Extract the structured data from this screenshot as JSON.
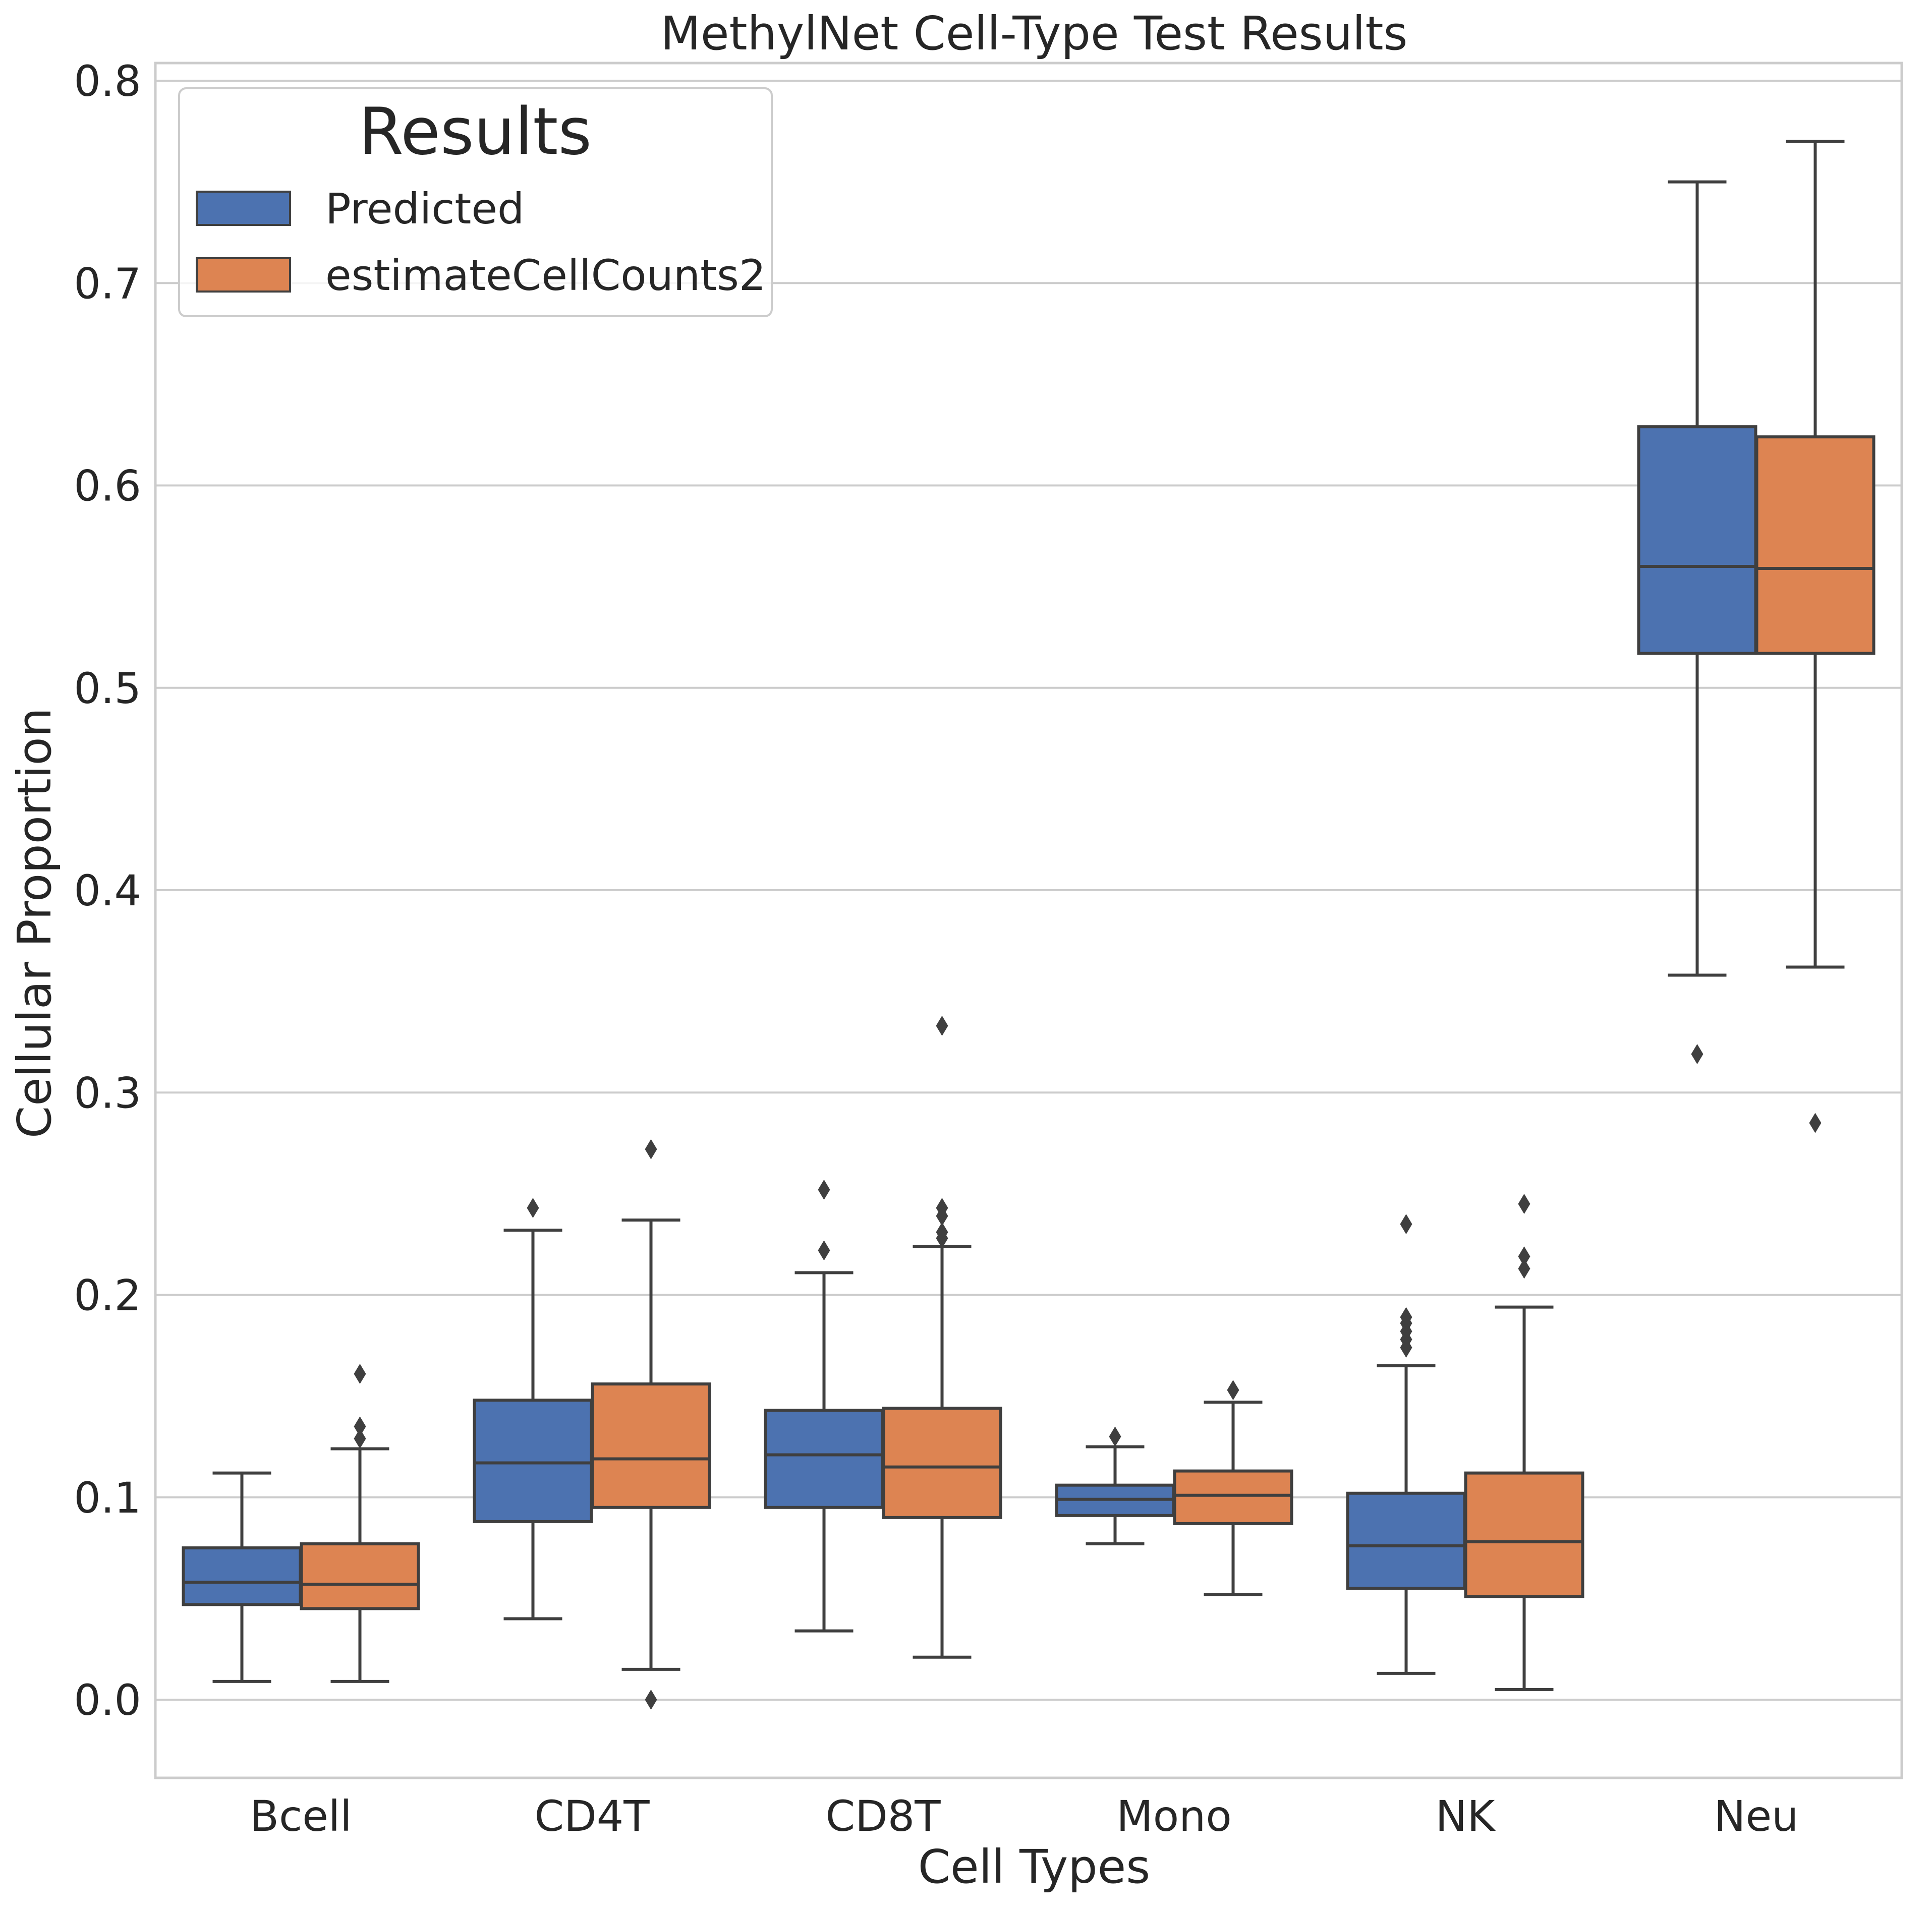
{
  "chart_data": {
    "type": "box",
    "title": "MethylNet Cell-Type Test Results",
    "xlabel": "Cell Types",
    "ylabel": "Cellular Proportion",
    "ylim": [
      -0.04,
      0.81
    ],
    "yticks": [
      "0.0",
      "0.1",
      "0.2",
      "0.3",
      "0.4",
      "0.5",
      "0.6",
      "0.7",
      "0.8"
    ],
    "grid": "horizontal",
    "legend": {
      "title": "Results",
      "position": "top-left"
    },
    "categories": [
      "Bcell",
      "CD4T",
      "CD8T",
      "Mono",
      "NK",
      "Neu"
    ],
    "series": [
      {
        "name": "Predicted",
        "color": "#4c72b0",
        "boxes": [
          {
            "whisker_low": 0.009,
            "q1": 0.047,
            "median": 0.058,
            "q3": 0.075,
            "whisker_high": 0.112,
            "outliers": []
          },
          {
            "whisker_low": 0.04,
            "q1": 0.088,
            "median": 0.117,
            "q3": 0.148,
            "whisker_high": 0.232,
            "outliers": [
              0.243
            ]
          },
          {
            "whisker_low": 0.034,
            "q1": 0.095,
            "median": 0.121,
            "q3": 0.143,
            "whisker_high": 0.211,
            "outliers": [
              0.222,
              0.252
            ]
          },
          {
            "whisker_low": 0.077,
            "q1": 0.091,
            "median": 0.099,
            "q3": 0.106,
            "whisker_high": 0.125,
            "outliers": [
              0.13
            ]
          },
          {
            "whisker_low": 0.013,
            "q1": 0.055,
            "median": 0.076,
            "q3": 0.102,
            "whisker_high": 0.165,
            "outliers": [
              0.174,
              0.178,
              0.182,
              0.186,
              0.189,
              0.235
            ]
          },
          {
            "whisker_low": 0.358,
            "q1": 0.517,
            "median": 0.56,
            "q3": 0.629,
            "whisker_high": 0.75,
            "outliers": [
              0.319
            ]
          }
        ]
      },
      {
        "name": "estimateCellCounts2",
        "color": "#dd8452",
        "boxes": [
          {
            "whisker_low": 0.009,
            "q1": 0.045,
            "median": 0.057,
            "q3": 0.077,
            "whisker_high": 0.124,
            "outliers": [
              0.129,
              0.135,
              0.161
            ]
          },
          {
            "whisker_low": 0.015,
            "q1": 0.095,
            "median": 0.119,
            "q3": 0.156,
            "whisker_high": 0.237,
            "outliers": [
              0.0,
              0.272
            ]
          },
          {
            "whisker_low": 0.021,
            "q1": 0.09,
            "median": 0.115,
            "q3": 0.144,
            "whisker_high": 0.224,
            "outliers": [
              0.228,
              0.231,
              0.239,
              0.243,
              0.333
            ]
          },
          {
            "whisker_low": 0.052,
            "q1": 0.087,
            "median": 0.101,
            "q3": 0.113,
            "whisker_high": 0.147,
            "outliers": [
              0.153
            ]
          },
          {
            "whisker_low": 0.005,
            "q1": 0.051,
            "median": 0.078,
            "q3": 0.112,
            "whisker_high": 0.194,
            "outliers": [
              0.213,
              0.219,
              0.245
            ]
          },
          {
            "whisker_low": 0.362,
            "q1": 0.517,
            "median": 0.559,
            "q3": 0.624,
            "whisker_high": 0.77,
            "outliers": [
              0.285
            ]
          }
        ]
      }
    ]
  }
}
